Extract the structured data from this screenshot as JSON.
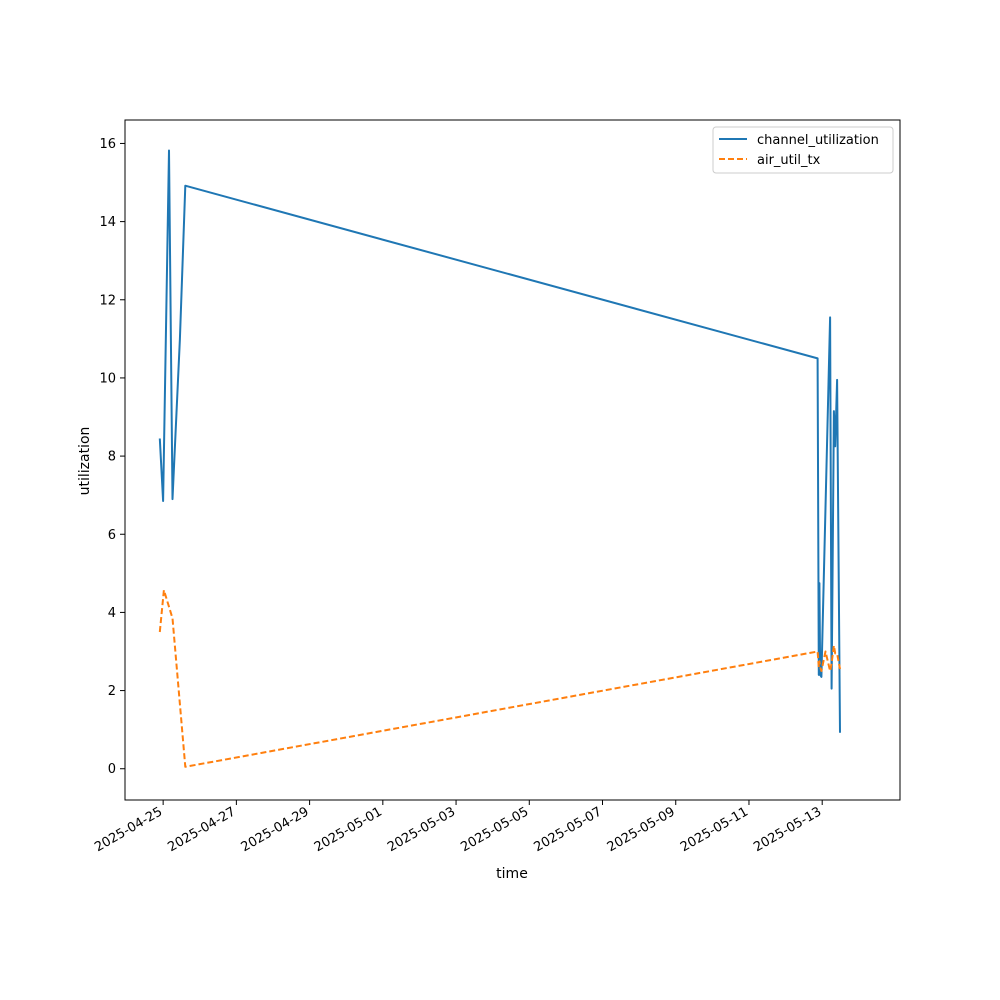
{
  "chart_data": {
    "type": "line",
    "title": "",
    "xlabel": "time",
    "ylabel": "utilization",
    "xlim": [
      "2025-04-23T23:00",
      "2025-05-15T03:00"
    ],
    "ylim": [
      -0.8,
      16.6
    ],
    "x_ticks": [
      "2025-04-25",
      "2025-04-27",
      "2025-04-29",
      "2025-05-01",
      "2025-05-03",
      "2025-05-05",
      "2025-05-07",
      "2025-05-09",
      "2025-05-11",
      "2025-05-13"
    ],
    "y_ticks": [
      "0",
      "2",
      "4",
      "6",
      "8",
      "10",
      "12",
      "14",
      "16"
    ],
    "grid": false,
    "legend_position": "top-right",
    "series": [
      {
        "name": "channel_utilization",
        "color": "#1f77b4",
        "style": "solid",
        "points": [
          {
            "x": "2025-04-24T21:50",
            "y": 8.45
          },
          {
            "x": "2025-04-25T00:00",
            "y": 6.85
          },
          {
            "x": "2025-04-25T03:50",
            "y": 15.82
          },
          {
            "x": "2025-04-25T06:10",
            "y": 6.9
          },
          {
            "x": "2025-04-25T11:00",
            "y": 11.0
          },
          {
            "x": "2025-04-25T14:30",
            "y": 14.92
          },
          {
            "x": "2025-05-12T21:00",
            "y": 10.5
          },
          {
            "x": "2025-05-12T21:45",
            "y": 2.4
          },
          {
            "x": "2025-05-12T22:10",
            "y": 4.75
          },
          {
            "x": "2025-05-12T22:40",
            "y": 2.4
          },
          {
            "x": "2025-05-12T23:30",
            "y": 2.35
          },
          {
            "x": "2025-05-13T05:10",
            "y": 11.55
          },
          {
            "x": "2025-05-13T06:10",
            "y": 2.05
          },
          {
            "x": "2025-05-13T07:40",
            "y": 9.15
          },
          {
            "x": "2025-05-13T08:30",
            "y": 8.25
          },
          {
            "x": "2025-05-13T09:45",
            "y": 9.95
          },
          {
            "x": "2025-05-13T11:40",
            "y": 0.92
          }
        ]
      },
      {
        "name": "air_util_tx",
        "color": "#ff7f0e",
        "style": "dashed",
        "points": [
          {
            "x": "2025-04-24T21:50",
            "y": 3.5
          },
          {
            "x": "2025-04-25T00:30",
            "y": 4.57
          },
          {
            "x": "2025-04-25T06:10",
            "y": 3.85
          },
          {
            "x": "2025-04-25T14:30",
            "y": 0.05
          },
          {
            "x": "2025-05-12T21:00",
            "y": 3.0
          },
          {
            "x": "2025-05-12T21:45",
            "y": 2.6
          },
          {
            "x": "2025-05-12T22:10",
            "y": 2.75
          },
          {
            "x": "2025-05-12T22:40",
            "y": 2.6
          },
          {
            "x": "2025-05-12T23:30",
            "y": 2.5
          },
          {
            "x": "2025-05-13T02:10",
            "y": 3.0
          },
          {
            "x": "2025-05-13T05:10",
            "y": 2.5
          },
          {
            "x": "2025-05-13T06:10",
            "y": 2.7
          },
          {
            "x": "2025-05-13T07:40",
            "y": 3.15
          },
          {
            "x": "2025-05-13T08:30",
            "y": 2.95
          },
          {
            "x": "2025-05-13T09:45",
            "y": 2.95
          },
          {
            "x": "2025-05-13T11:40",
            "y": 2.55
          }
        ]
      }
    ]
  }
}
